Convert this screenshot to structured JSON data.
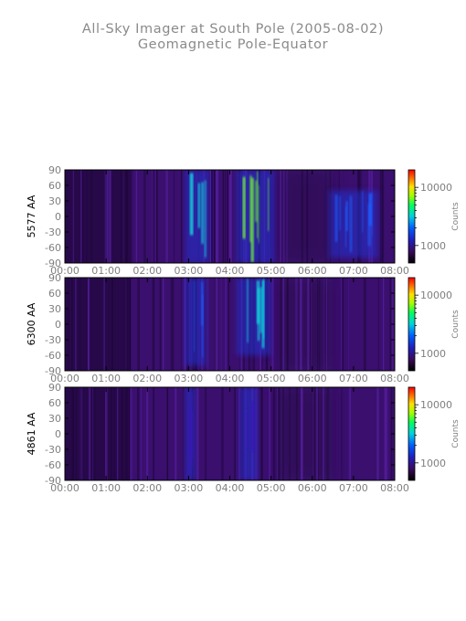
{
  "title": "All-Sky Imager at South Pole (2005-08-02)",
  "subtitle": "Geomagnetic Pole-Equator",
  "colors": {
    "axis": "#000000",
    "tick_label": "#7f7f7f",
    "background": "#ffffff"
  },
  "chart_data": [
    {
      "type": "heatmap",
      "panel_label": "5577 AA",
      "x_range": [
        "00:00",
        "08:00"
      ],
      "x_ticks": [
        "00:00",
        "01:00",
        "02:00",
        "03:00",
        "04:00",
        "05:00",
        "06:00",
        "07:00",
        "08:00"
      ],
      "y_range": [
        -90,
        90
      ],
      "y_ticks": [
        "90",
        "60",
        "30",
        "0",
        "-30",
        "-60",
        "-90"
      ],
      "colorbar": {
        "label": "Counts",
        "ticks": [
          "10000",
          "1000"
        ],
        "scale": "log",
        "range": [
          500,
          20000
        ]
      },
      "features": [
        {
          "time_start": "03:00",
          "time_end": "03:25",
          "latitude_range": [
            -90,
            90
          ],
          "level": "high"
        },
        {
          "time_start": "04:15",
          "time_end": "05:00",
          "latitude_range": [
            -90,
            90
          ],
          "level": "very high"
        },
        {
          "time_start": "06:30",
          "time_end": "07:30",
          "latitude_range": [
            -80,
            50
          ],
          "level": "medium"
        }
      ]
    },
    {
      "type": "heatmap",
      "panel_label": "6300 AA",
      "x_range": [
        "00:00",
        "08:00"
      ],
      "x_ticks": [
        "00:00",
        "01:00",
        "02:00",
        "03:00",
        "04:00",
        "05:00",
        "06:00",
        "07:00",
        "08:00"
      ],
      "y_range": [
        -90,
        90
      ],
      "y_ticks": [
        "90",
        "60",
        "30",
        "0",
        "-30",
        "-60",
        "-90"
      ],
      "colorbar": {
        "label": "Counts",
        "ticks": [
          "10000",
          "1000"
        ],
        "scale": "log",
        "range": [
          500,
          20000
        ]
      },
      "features": [
        {
          "time_start": "03:00",
          "time_end": "03:20",
          "latitude_range": [
            -80,
            90
          ],
          "level": "medium"
        },
        {
          "time_start": "04:15",
          "time_end": "04:55",
          "latitude_range": [
            -60,
            90
          ],
          "level": "high"
        }
      ]
    },
    {
      "type": "heatmap",
      "panel_label": "4861 AA",
      "x_range": [
        "00:00",
        "08:00"
      ],
      "x_ticks": [
        "00:00",
        "01:00",
        "02:00",
        "03:00",
        "04:00",
        "05:00",
        "06:00",
        "07:00",
        "08:00"
      ],
      "y_range": [
        -90,
        90
      ],
      "y_ticks": [
        "90",
        "60",
        "30",
        "0",
        "-30",
        "-60",
        "-90"
      ],
      "colorbar": {
        "label": "Counts",
        "ticks": [
          "10000",
          "1000"
        ],
        "scale": "log",
        "range": [
          500,
          20000
        ]
      },
      "features": [
        {
          "time_start": "03:00",
          "time_end": "03:05",
          "latitude_range": [
            -90,
            90
          ],
          "level": "low"
        },
        {
          "time_start": "04:20",
          "time_end": "04:35",
          "latitude_range": [
            -90,
            90
          ],
          "level": "low"
        }
      ]
    }
  ]
}
